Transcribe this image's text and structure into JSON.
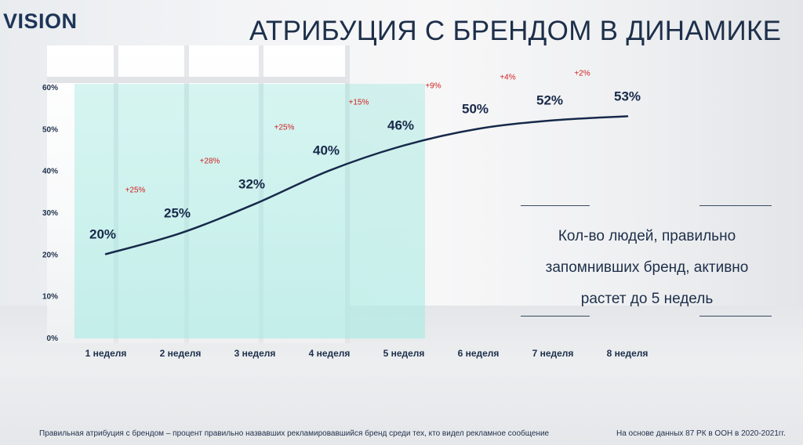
{
  "header": {
    "logo_text": "VISION",
    "title": "АТРИБУЦИЯ С БРЕНДОМ В ДИНАМИКЕ"
  },
  "chart_data": {
    "type": "line",
    "title": "",
    "xlabel": "",
    "ylabel": "",
    "categories": [
      "1 неделя",
      "2 неделя",
      "3 неделя",
      "4 неделя",
      "5 неделя",
      "6 неделя",
      "7 неделя",
      "8 неделя"
    ],
    "values": [
      20,
      25,
      32,
      40,
      46,
      50,
      52,
      53
    ],
    "value_labels": [
      "20%",
      "25%",
      "32%",
      "40%",
      "46%",
      "50%",
      "52%",
      "53%"
    ],
    "growth_labels": [
      "+25%",
      "+28%",
      "+25%",
      "+15%",
      "+9%",
      "+4%",
      "+2%"
    ],
    "ylim": [
      0,
      60
    ],
    "yticks": [
      {
        "value": 0,
        "label": "0%"
      },
      {
        "value": 10,
        "label": "10%"
      },
      {
        "value": 20,
        "label": "20%"
      },
      {
        "value": 30,
        "label": "30%"
      },
      {
        "value": 40,
        "label": "40%"
      },
      {
        "value": 50,
        "label": "50%"
      },
      {
        "value": 60,
        "label": "60%"
      }
    ],
    "grid": false,
    "line_color": "#17294a",
    "growth_color": "#d01f1f",
    "highlight_range": [
      "1 неделя",
      "5 неделя"
    ],
    "highlight_color": "#a8ebe1"
  },
  "callout": {
    "lines": [
      "Кол-во людей, правильно",
      "запомнивших бренд, активно",
      "растет  до 5 недель"
    ]
  },
  "footer": {
    "left_note": "Правильная атрибуция с брендом – процент правильно назвавших рекламировавшийся бренд среди тех, кто видел рекламное сообщение",
    "right_note": "На основе данных 87 РК в ООН в 2020-2021гг."
  }
}
